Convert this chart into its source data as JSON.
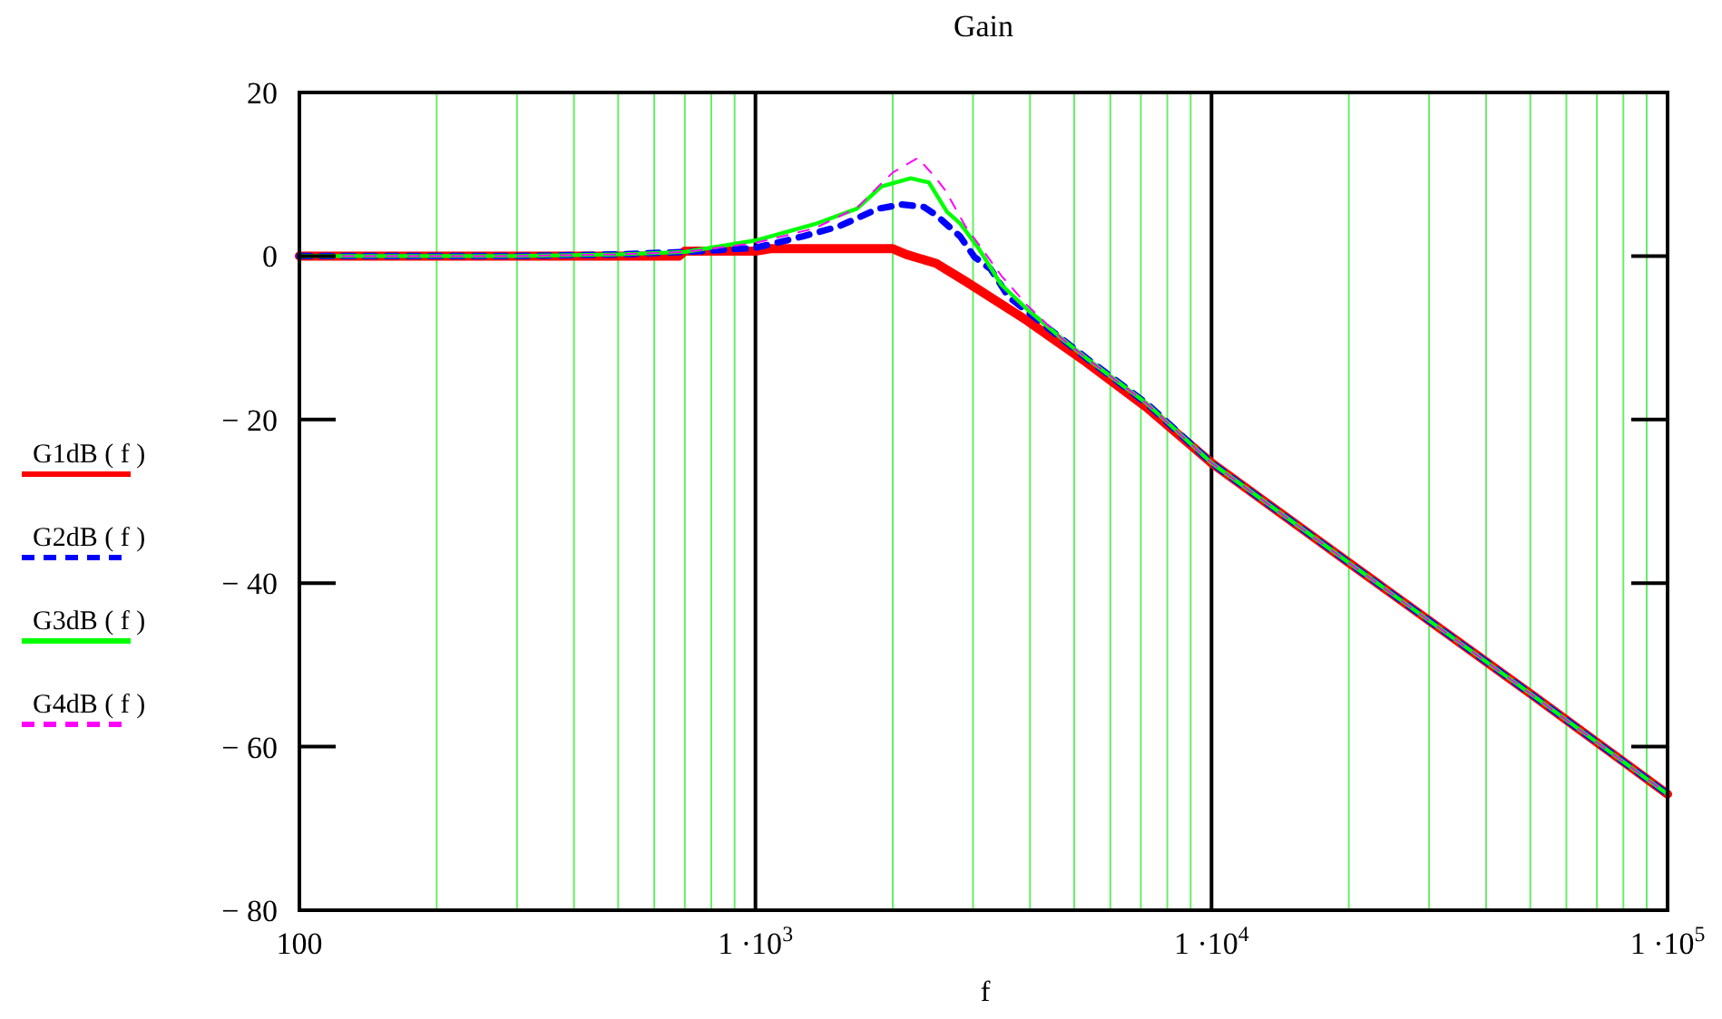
{
  "chart_data": {
    "type": "line",
    "title": "Gain",
    "xlabel": "f",
    "log": "x",
    "grid": "x",
    "legend": "left",
    "xlim": [
      100,
      100000
    ],
    "ylim": [
      -80,
      20
    ],
    "xticks": [
      100,
      {
        "value": 200,
        "label": null
      },
      {
        "value": 300,
        "label": null
      },
      {
        "value": 400,
        "label": null
      },
      {
        "value": 500,
        "label": null
      },
      {
        "value": 600,
        "label": null
      },
      {
        "value": 700,
        "label": null
      },
      {
        "value": 800,
        "label": null
      },
      {
        "value": 900,
        "label": null
      },
      {
        "value": 1000,
        "label": "1 ·10$^{3}$"
      },
      {
        "value": 2000,
        "label": null
      },
      {
        "value": 3000,
        "label": null
      },
      {
        "value": 4000,
        "label": null
      },
      {
        "value": 5000,
        "label": null
      },
      {
        "value": 6000,
        "label": null
      },
      {
        "value": 7000,
        "label": null
      },
      {
        "value": 8000,
        "label": null
      },
      {
        "value": 9000,
        "label": null
      },
      {
        "value": 10000,
        "label": "1 ·10$^{4}$"
      },
      {
        "value": 20000,
        "label": null
      },
      {
        "value": 30000,
        "label": null
      },
      {
        "value": 40000,
        "label": null
      },
      {
        "value": 50000,
        "label": null
      },
      {
        "value": 60000,
        "label": null
      },
      {
        "value": 70000,
        "label": null
      },
      {
        "value": 80000,
        "label": null
      },
      {
        "value": 90000,
        "label": null
      },
      {
        "value": 100000,
        "label": "1 ·10$^{5}$"
      }
    ],
    "yticks": [
      20,
      0,
      {
        "value": -20,
        "label": "− 20"
      },
      {
        "value": -40,
        "label": "− 40"
      },
      {
        "value": -60,
        "label": "− 60"
      },
      {
        "value": -80,
        "label": "− 80"
      }
    ],
    "series": [
      {
        "name": "G1dB  ( f )",
        "color": "#ff0000",
        "line_style": "solid",
        "x": [
          100,
          300,
          680,
          700,
          1000,
          1080,
          2000,
          2140,
          2490,
          2890,
          3940,
          5320,
          7200,
          10000,
          20000,
          50000,
          100000
        ],
        "values": [
          0,
          0,
          0,
          0.6,
          0.6,
          0.9,
          0.9,
          0.2,
          -0.9,
          -3.1,
          -7.9,
          -13,
          -18.5,
          -25.3,
          -37.5,
          -53.5,
          -65.8
        ]
      },
      {
        "name": "G2dB  ( f )",
        "color": "#0000ff",
        "line_style": "dashed",
        "x": [
          100,
          300,
          500,
          700,
          1000,
          1270,
          1520,
          1860,
          2100,
          2340,
          2490,
          2810,
          3020,
          3280,
          3590,
          5320,
          7200,
          10000,
          20000,
          50000,
          100000
        ],
        "values": [
          0,
          0,
          0.2,
          0.5,
          1,
          2.4,
          3.6,
          5.8,
          6.3,
          6,
          5,
          2.4,
          -0.1,
          -1.6,
          -5,
          -12.5,
          -18,
          -25.3,
          -37.5,
          -53.5,
          -65.8
        ]
      },
      {
        "name": "G3dB  ( f )",
        "color": "#00ff00",
        "line_style": "solid",
        "x": [
          100,
          300,
          500,
          700,
          1000,
          1350,
          1670,
          1890,
          2190,
          2400,
          2630,
          2810,
          3080,
          3460,
          3940,
          4720,
          5320,
          7200,
          10000,
          20000,
          50000,
          100000
        ],
        "values": [
          0,
          0,
          0.2,
          0.5,
          1.9,
          3.9,
          5.8,
          8.5,
          9.5,
          9,
          5.4,
          4,
          1,
          -3.5,
          -6.5,
          -10.2,
          -12.5,
          -18,
          -25.3,
          -37.5,
          -53.5,
          -65.8
        ]
      },
      {
        "name": "G4dB  ( f )",
        "color": "#ff00ff",
        "line_style": "dashed",
        "x": [
          100,
          300,
          500,
          700,
          1000,
          1350,
          1670,
          1890,
          2000,
          2270,
          2490,
          2610,
          2890,
          3080,
          3460,
          3940,
          4720,
          5320,
          7200,
          10000,
          20000,
          50000,
          100000
        ],
        "values": [
          0,
          0,
          0.2,
          0.5,
          1.6,
          3.4,
          5.9,
          8.9,
          10.2,
          12,
          9.5,
          8,
          3.6,
          1.5,
          -2.4,
          -6,
          -10.2,
          -12.5,
          -18,
          -25.3,
          -37.5,
          -53.5,
          -65.8
        ]
      }
    ]
  }
}
